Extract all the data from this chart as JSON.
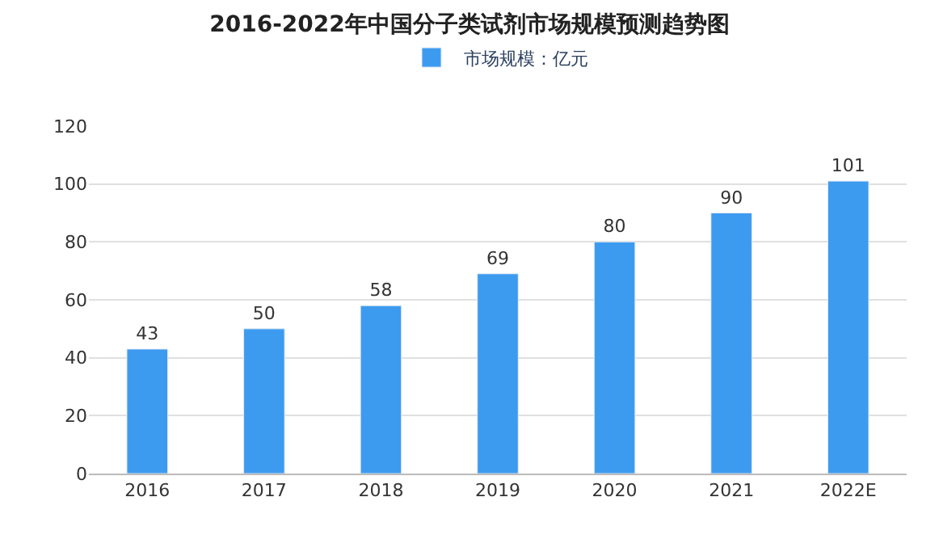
{
  "chart_data": {
    "type": "bar",
    "title": "2016-2022年中国分子类试剂市场规模预测趋势图",
    "categories": [
      "2016",
      "2017",
      "2018",
      "2019",
      "2020",
      "2021",
      "2022E"
    ],
    "series": [
      {
        "name": "市场规模：亿元",
        "color": "#3d9bef",
        "values": [
          43,
          50,
          58,
          69,
          80,
          90,
          101
        ]
      }
    ],
    "ylim": [
      0,
      120
    ],
    "yticks": [
      0,
      20,
      40,
      60,
      80,
      100,
      120
    ],
    "grid": "y",
    "legend": "top",
    "data_labels": true
  }
}
